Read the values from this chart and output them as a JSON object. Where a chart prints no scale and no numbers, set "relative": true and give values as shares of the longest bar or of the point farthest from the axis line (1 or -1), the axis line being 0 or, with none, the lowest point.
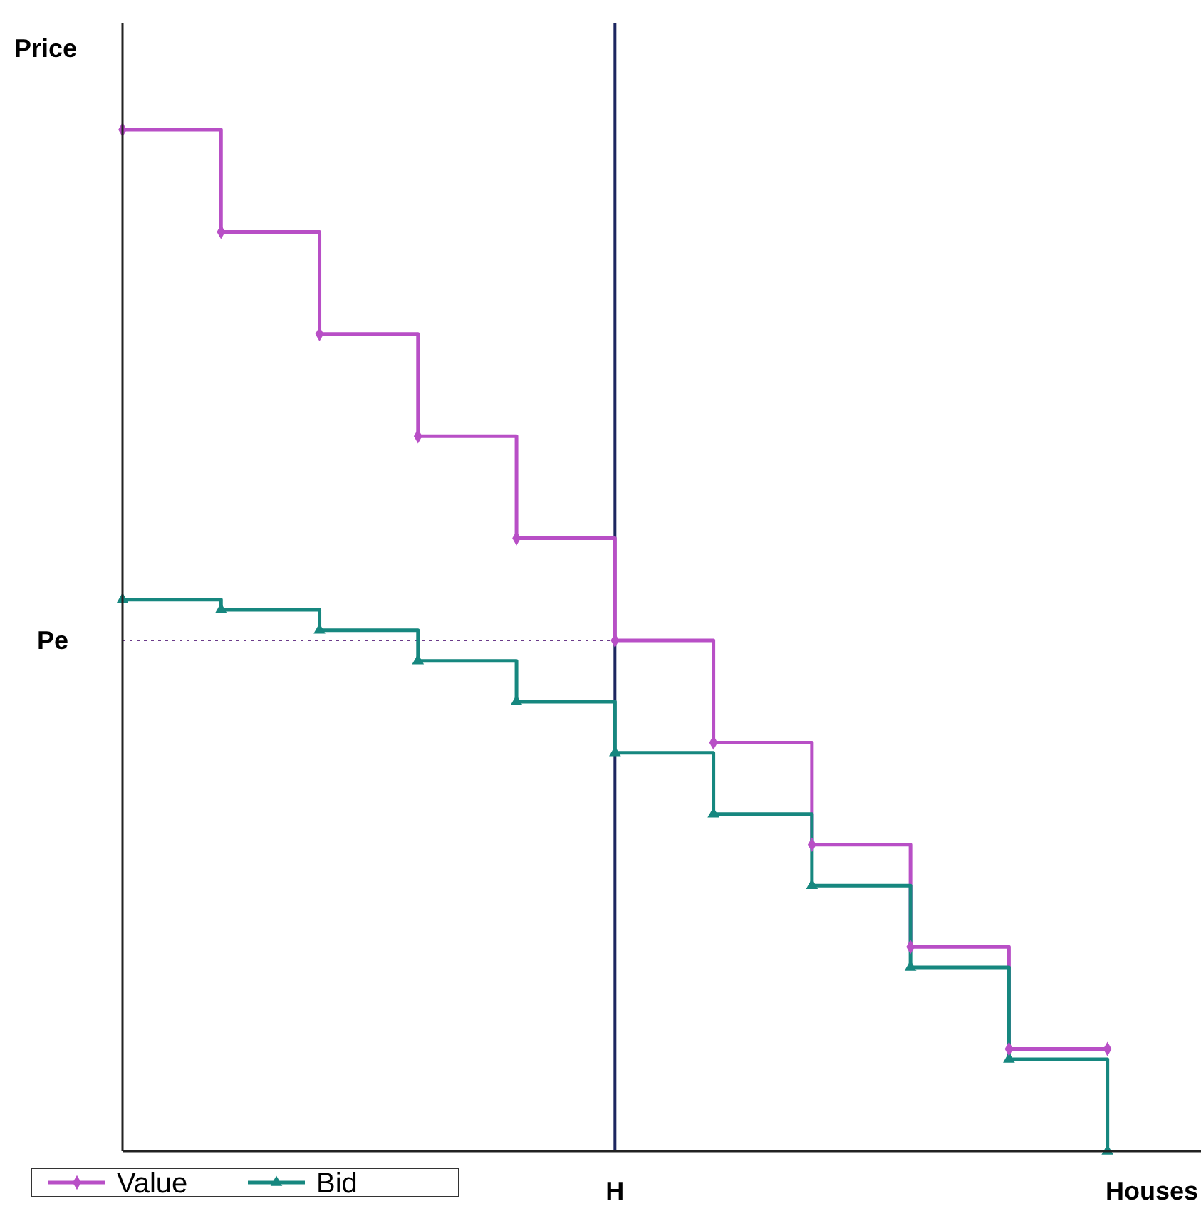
{
  "chart_data": {
    "type": "step",
    "relative": true,
    "ylabel": "Price",
    "xlabel": "Houses",
    "categories": [
      null,
      null,
      null,
      null,
      null,
      null,
      null,
      null,
      null,
      null,
      null
    ],
    "series": [
      {
        "name": "Value",
        "color": "#b84fc6",
        "marker": "diamond",
        "values": [
          1,
          0.9,
          0.8,
          0.7,
          0.6,
          0.5,
          0.4,
          0.3,
          0.2,
          0.1,
          0.1
        ]
      },
      {
        "name": "Bid",
        "color": "#16877f",
        "marker": "triangle",
        "values": [
          0.54,
          0.53,
          0.51,
          0.48,
          0.44,
          0.39,
          0.33,
          0.26,
          0.18,
          0.09,
          0
        ]
      }
    ],
    "ref_lines": [
      {
        "axis": "y",
        "value": 0.5,
        "label": "Pe",
        "color": "#6a3a8a",
        "line_style": "dotted"
      }
    ],
    "annotations": [
      "H"
    ],
    "legend": "bottom left"
  }
}
